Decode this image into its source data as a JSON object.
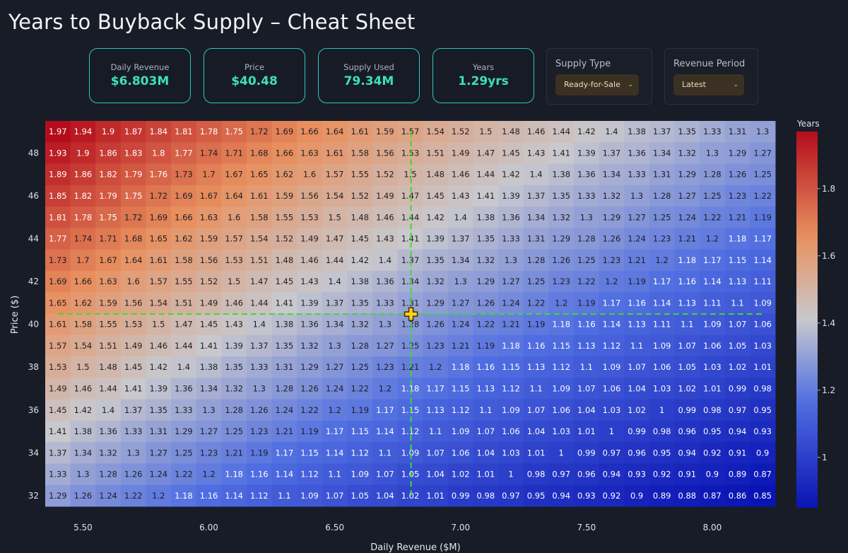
{
  "title": "Years to Buyback Supply – Cheat Sheet",
  "cards": [
    {
      "label": "Daily Revenue",
      "value": "$6.803M"
    },
    {
      "label": "Price",
      "value": "$40.48"
    },
    {
      "label": "Supply Used",
      "value": "79.34M"
    },
    {
      "label": "Years",
      "value": "1.29yrs"
    }
  ],
  "controls": {
    "supply_type": {
      "label": "Supply Type",
      "selected": "Ready-for-Sale"
    },
    "revenue_period": {
      "label": "Revenue Period",
      "selected": "Latest"
    }
  },
  "colors": {
    "low": "#0a14b4",
    "mid": "#c9c9cd",
    "high": "#b40c1c",
    "crosshair": "#3ddc2a",
    "marker": "#ffd21e",
    "accent": "#3ee0b8"
  },
  "chart_data": {
    "type": "heatmap",
    "xlabel": "Daily Revenue ($M)",
    "ylabel": "Price ($)",
    "colorbar_title": "Years",
    "colorscale": "coolwarm (blue low, red high)",
    "zlim": [
      0.85,
      1.97
    ],
    "colorbar_ticks": [
      "1",
      "1.2",
      "1.4",
      "1.6",
      "1.8"
    ],
    "x": [
      5.4,
      5.5,
      5.6,
      5.7,
      5.8,
      5.9,
      6.0,
      6.1,
      6.2,
      6.3,
      6.4,
      6.5,
      6.6,
      6.7,
      6.8,
      6.9,
      7.0,
      7.1,
      7.2,
      7.3,
      7.4,
      7.5,
      7.6,
      7.7,
      7.8,
      7.9,
      8.0,
      8.1,
      8.2
    ],
    "x_ticks": [
      "5.50",
      "6.00",
      "6.50",
      "7.00",
      "7.50",
      "8.00"
    ],
    "y": [
      49,
      48,
      47,
      46,
      45,
      44,
      43,
      42,
      41,
      40,
      39,
      38,
      37,
      36,
      35,
      34,
      33,
      32
    ],
    "y_ticks": [
      "48",
      "46",
      "44",
      "42",
      "40",
      "38",
      "36",
      "34",
      "32"
    ],
    "z": [
      [
        1.97,
        1.94,
        1.9,
        1.87,
        1.84,
        1.81,
        1.78,
        1.75,
        1.72,
        1.69,
        1.66,
        1.64,
        1.61,
        1.59,
        1.57,
        1.54,
        1.52,
        1.5,
        1.48,
        1.46,
        1.44,
        1.42,
        1.4,
        1.38,
        1.37,
        1.35,
        1.33,
        1.31,
        1.3
      ],
      [
        1.93,
        1.9,
        1.86,
        1.83,
        1.8,
        1.77,
        1.74,
        1.71,
        1.68,
        1.66,
        1.63,
        1.61,
        1.58,
        1.56,
        1.53,
        1.51,
        1.49,
        1.47,
        1.45,
        1.43,
        1.41,
        1.39,
        1.37,
        1.36,
        1.34,
        1.32,
        1.3,
        1.29,
        1.27
      ],
      [
        1.89,
        1.86,
        1.82,
        1.79,
        1.76,
        1.73,
        1.7,
        1.67,
        1.65,
        1.62,
        1.6,
        1.57,
        1.55,
        1.52,
        1.5,
        1.48,
        1.46,
        1.44,
        1.42,
        1.4,
        1.38,
        1.36,
        1.34,
        1.33,
        1.31,
        1.29,
        1.28,
        1.26,
        1.25
      ],
      [
        1.85,
        1.82,
        1.79,
        1.75,
        1.72,
        1.69,
        1.67,
        1.64,
        1.61,
        1.59,
        1.56,
        1.54,
        1.52,
        1.49,
        1.47,
        1.45,
        1.43,
        1.41,
        1.39,
        1.37,
        1.35,
        1.33,
        1.32,
        1.3,
        1.28,
        1.27,
        1.25,
        1.23,
        1.22
      ],
      [
        1.81,
        1.78,
        1.75,
        1.72,
        1.69,
        1.66,
        1.63,
        1.6,
        1.58,
        1.55,
        1.53,
        1.5,
        1.48,
        1.46,
        1.44,
        1.42,
        1.4,
        1.38,
        1.36,
        1.34,
        1.32,
        1.3,
        1.29,
        1.27,
        1.25,
        1.24,
        1.22,
        1.21,
        1.19
      ],
      [
        1.77,
        1.74,
        1.71,
        1.68,
        1.65,
        1.62,
        1.59,
        1.57,
        1.54,
        1.52,
        1.49,
        1.47,
        1.45,
        1.43,
        1.41,
        1.39,
        1.37,
        1.35,
        1.33,
        1.31,
        1.29,
        1.28,
        1.26,
        1.24,
        1.23,
        1.21,
        1.2,
        1.18,
        1.17
      ],
      [
        1.73,
        1.7,
        1.67,
        1.64,
        1.61,
        1.58,
        1.56,
        1.53,
        1.51,
        1.48,
        1.46,
        1.44,
        1.42,
        1.4,
        1.37,
        1.35,
        1.34,
        1.32,
        1.3,
        1.28,
        1.26,
        1.25,
        1.23,
        1.21,
        1.2,
        1.18,
        1.17,
        1.15,
        1.14
      ],
      [
        1.69,
        1.66,
        1.63,
        1.6,
        1.57,
        1.55,
        1.52,
        1.5,
        1.47,
        1.45,
        1.43,
        1.4,
        1.38,
        1.36,
        1.34,
        1.32,
        1.3,
        1.29,
        1.27,
        1.25,
        1.23,
        1.22,
        1.2,
        1.19,
        1.17,
        1.16,
        1.14,
        1.13,
        1.11
      ],
      [
        1.65,
        1.62,
        1.59,
        1.56,
        1.54,
        1.51,
        1.49,
        1.46,
        1.44,
        1.41,
        1.39,
        1.37,
        1.35,
        1.33,
        1.31,
        1.29,
        1.27,
        1.26,
        1.24,
        1.22,
        1.2,
        1.19,
        1.17,
        1.16,
        1.14,
        1.13,
        1.11,
        1.1,
        1.09
      ],
      [
        1.61,
        1.58,
        1.55,
        1.53,
        1.5,
        1.47,
        1.45,
        1.43,
        1.4,
        1.38,
        1.36,
        1.34,
        1.32,
        1.3,
        1.28,
        1.26,
        1.24,
        1.22,
        1.21,
        1.19,
        1.18,
        1.16,
        1.14,
        1.13,
        1.11,
        1.1,
        1.09,
        1.07,
        1.06
      ],
      [
        1.57,
        1.54,
        1.51,
        1.49,
        1.46,
        1.44,
        1.41,
        1.39,
        1.37,
        1.35,
        1.32,
        1.3,
        1.28,
        1.27,
        1.25,
        1.23,
        1.21,
        1.19,
        1.18,
        1.16,
        1.15,
        1.13,
        1.12,
        1.1,
        1.09,
        1.07,
        1.06,
        1.05,
        1.03
      ],
      [
        1.53,
        1.5,
        1.48,
        1.45,
        1.42,
        1.4,
        1.38,
        1.35,
        1.33,
        1.31,
        1.29,
        1.27,
        1.25,
        1.23,
        1.21,
        1.2,
        1.18,
        1.16,
        1.15,
        1.13,
        1.12,
        1.1,
        1.09,
        1.07,
        1.06,
        1.05,
        1.03,
        1.02,
        1.01
      ],
      [
        1.49,
        1.46,
        1.44,
        1.41,
        1.39,
        1.36,
        1.34,
        1.32,
        1.3,
        1.28,
        1.26,
        1.24,
        1.22,
        1.2,
        1.18,
        1.17,
        1.15,
        1.13,
        1.12,
        1.1,
        1.09,
        1.07,
        1.06,
        1.04,
        1.03,
        1.02,
        1.01,
        0.99,
        0.98
      ],
      [
        1.45,
        1.42,
        1.4,
        1.37,
        1.35,
        1.33,
        1.3,
        1.28,
        1.26,
        1.24,
        1.22,
        1.2,
        1.19,
        1.17,
        1.15,
        1.13,
        1.12,
        1.1,
        1.09,
        1.07,
        1.06,
        1.04,
        1.03,
        1.02,
        1.0,
        0.99,
        0.98,
        0.97,
        0.95
      ],
      [
        1.41,
        1.38,
        1.36,
        1.33,
        1.31,
        1.29,
        1.27,
        1.25,
        1.23,
        1.21,
        1.19,
        1.17,
        1.15,
        1.14,
        1.12,
        1.1,
        1.09,
        1.07,
        1.06,
        1.04,
        1.03,
        1.01,
        1.0,
        0.99,
        0.98,
        0.96,
        0.95,
        0.94,
        0.93
      ],
      [
        1.37,
        1.34,
        1.32,
        1.3,
        1.27,
        1.25,
        1.23,
        1.21,
        1.19,
        1.17,
        1.15,
        1.14,
        1.12,
        1.1,
        1.09,
        1.07,
        1.06,
        1.04,
        1.03,
        1.01,
        1.0,
        0.99,
        0.97,
        0.96,
        0.95,
        0.94,
        0.92,
        0.91,
        0.9
      ],
      [
        1.33,
        1.3,
        1.28,
        1.26,
        1.24,
        1.22,
        1.2,
        1.18,
        1.16,
        1.14,
        1.12,
        1.1,
        1.09,
        1.07,
        1.05,
        1.04,
        1.02,
        1.01,
        1.0,
        0.98,
        0.97,
        0.96,
        0.94,
        0.93,
        0.92,
        0.91,
        0.9,
        0.89,
        0.87
      ],
      [
        1.29,
        1.26,
        1.24,
        1.22,
        1.2,
        1.18,
        1.16,
        1.14,
        1.12,
        1.1,
        1.09,
        1.07,
        1.05,
        1.04,
        1.02,
        1.01,
        0.99,
        0.98,
        0.97,
        0.95,
        0.94,
        0.93,
        0.92,
        0.9,
        0.89,
        0.88,
        0.87,
        0.86,
        0.85
      ]
    ],
    "crosshair": {
      "x": 6.803,
      "y": 40.48
    }
  }
}
